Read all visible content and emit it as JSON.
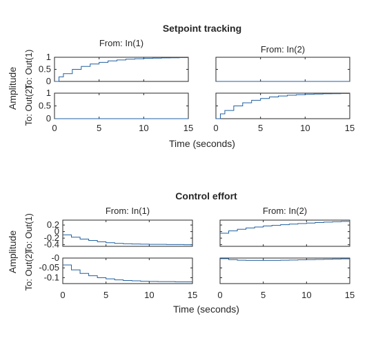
{
  "figure": {
    "line_color": "#1f5fa0",
    "time_label": "Time (seconds)",
    "amplitude_label": "Amplitude"
  },
  "chart_data": [
    {
      "type": "line",
      "title": "Setpoint tracking",
      "xlabel": "Time (seconds)",
      "ylabel": "Amplitude",
      "col_titles": [
        "From: In(1)",
        "From: In(2)"
      ],
      "row_labels": [
        "To: Out(1)",
        "To: Out(2)"
      ],
      "xlim": [
        0,
        15
      ],
      "xticks": [
        "0",
        "5",
        "10",
        "15"
      ],
      "rows": [
        {
          "ylim": [
            0,
            1
          ],
          "yticks": [
            {
              "v": 0,
              "t": "0"
            },
            {
              "v": 0.5,
              "t": "0.5"
            },
            {
              "v": 1,
              "t": "1"
            }
          ],
          "reference": 1,
          "cells": [
            {
              "name": "In(1) to Out(1)",
              "x": [
                0,
                0.5,
                1,
                2,
                3,
                4,
                5,
                6,
                7,
                8,
                9,
                10,
                11,
                12,
                13,
                14,
                15
              ],
              "y": [
                0,
                0.19,
                0.32,
                0.5,
                0.62,
                0.72,
                0.79,
                0.85,
                0.89,
                0.92,
                0.94,
                0.955,
                0.965,
                0.975,
                0.98,
                0.985,
                0.99
              ]
            },
            {
              "name": "In(2) to Out(1)",
              "x": [
                0,
                15
              ],
              "y": [
                0,
                0
              ]
            }
          ]
        },
        {
          "ylim": [
            0,
            1
          ],
          "yticks": [
            {
              "v": 0,
              "t": "0"
            },
            {
              "v": 0.5,
              "t": "0.5"
            },
            {
              "v": 1,
              "t": "1"
            }
          ],
          "reference": 1,
          "cells": [
            {
              "name": "In(1) to Out(2)",
              "x": [
                0,
                15
              ],
              "y": [
                0,
                0
              ]
            },
            {
              "name": "In(2) to Out(2)",
              "x": [
                0,
                0.5,
                1,
                2,
                3,
                4,
                5,
                6,
                7,
                8,
                9,
                10,
                11,
                12,
                13,
                14,
                15
              ],
              "y": [
                0,
                0.19,
                0.32,
                0.5,
                0.62,
                0.72,
                0.79,
                0.85,
                0.89,
                0.92,
                0.94,
                0.955,
                0.965,
                0.975,
                0.98,
                0.985,
                0.99
              ]
            }
          ]
        }
      ]
    },
    {
      "type": "line",
      "title": "Control effort",
      "xlabel": "Time (seconds)",
      "ylabel": "Amplitude",
      "col_titles": [
        "From: In(1)",
        "From: In(2)"
      ],
      "row_labels": [
        "To: Out(1)",
        "To: Out(2)"
      ],
      "xlim": [
        0,
        15
      ],
      "xticks": [
        "0",
        "5",
        "10",
        "15"
      ],
      "rows": [
        {
          "ylim": [
            -0.45,
            0.35
          ],
          "yticks": [
            {
              "v": 0.2,
              "t": "0.2"
            },
            {
              "v": 0,
              "t": "0"
            },
            {
              "v": -0.2,
              "t": "-0.2"
            },
            {
              "v": -0.4,
              "t": "-0.4"
            }
          ],
          "reference": null,
          "cells": [
            {
              "name": "In(1) to Out(1)",
              "x": [
                0,
                1,
                2,
                3,
                4,
                5,
                6,
                7,
                8,
                9,
                10,
                11,
                12,
                13,
                14,
                15
              ],
              "y": [
                -0.1,
                -0.17,
                -0.23,
                -0.27,
                -0.31,
                -0.34,
                -0.36,
                -0.37,
                -0.38,
                -0.385,
                -0.39,
                -0.39,
                -0.395,
                -0.395,
                -0.4,
                -0.4
              ]
            },
            {
              "name": "In(2) to Out(1)",
              "x": [
                0,
                1,
                2,
                3,
                4,
                5,
                6,
                7,
                8,
                9,
                10,
                11,
                12,
                13,
                14,
                15
              ],
              "y": [
                -0.05,
                0.02,
                0.07,
                0.11,
                0.14,
                0.17,
                0.19,
                0.21,
                0.23,
                0.245,
                0.26,
                0.275,
                0.29,
                0.3,
                0.31,
                0.32
              ]
            }
          ]
        },
        {
          "ylim": [
            -0.13,
            0.0
          ],
          "yticks": [
            {
              "v": 0,
              "t": "-0"
            },
            {
              "v": -0.05,
              "t": "-0.05"
            },
            {
              "v": -0.1,
              "t": "-0.1"
            }
          ],
          "reference": null,
          "cells": [
            {
              "name": "In(1) to Out(2)",
              "x": [
                0,
                1,
                2,
                3,
                4,
                5,
                6,
                7,
                8,
                9,
                10,
                11,
                12,
                13,
                14,
                15
              ],
              "y": [
                -0.035,
                -0.06,
                -0.078,
                -0.09,
                -0.1,
                -0.106,
                -0.111,
                -0.114,
                -0.116,
                -0.118,
                -0.119,
                -0.12,
                -0.12,
                -0.121,
                -0.121,
                -0.121
              ]
            },
            {
              "name": "In(2) to Out(2)",
              "x": [
                0,
                1,
                2,
                3,
                4,
                5,
                6,
                7,
                8,
                9,
                10,
                11,
                12,
                13,
                14,
                15
              ],
              "y": [
                -0.003,
                -0.008,
                -0.011,
                -0.012,
                -0.012,
                -0.012,
                -0.012,
                -0.011,
                -0.01,
                -0.009,
                -0.008,
                -0.007,
                -0.006,
                -0.005,
                -0.004,
                -0.003
              ]
            }
          ]
        }
      ]
    }
  ]
}
